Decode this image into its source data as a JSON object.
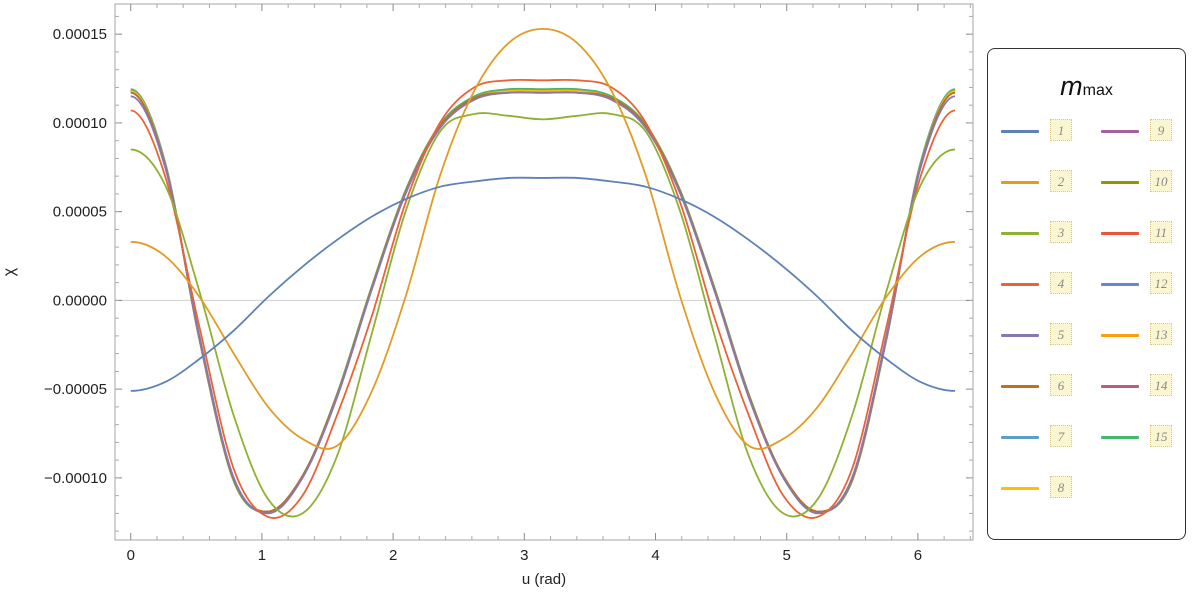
{
  "chart_data": {
    "type": "line",
    "title": "",
    "xlabel": "u (rad)",
    "ylabel": "χ",
    "xlim": [
      -0.12,
      6.42
    ],
    "ylim": [
      -0.000135,
      0.000167
    ],
    "x_ticks": [
      0,
      1,
      2,
      3,
      4,
      5,
      6
    ],
    "x_tick_labels": [
      "0",
      "1",
      "2",
      "3",
      "4",
      "5",
      "6"
    ],
    "y_ticks": [
      0.00015,
      0.0001,
      5e-05,
      0,
      -5e-05,
      -0.0001
    ],
    "y_tick_labels": [
      "0.00015",
      "0.00010",
      "0.00005",
      "0.00000",
      "−0.00005",
      "−0.00010"
    ],
    "grid": false,
    "legend_placement": "right",
    "legend_title": "m",
    "legend_title_sub": "max",
    "x_samples": [
      0,
      0.2618,
      0.5236,
      0.7854,
      1.0472,
      1.309,
      1.5708,
      1.8326,
      2.0944,
      2.3562,
      2.618,
      2.8798,
      3.1416
    ],
    "symmetry": "values mirrored about u = 3.1416",
    "series": [
      {
        "name": "1",
        "color": "#5e81b5",
        "values": [
          -5.1e-05,
          -4.6e-05,
          -3.3e-05,
          -1.7e-05,
          2e-06,
          1.9e-05,
          3.4e-05,
          4.7e-05,
          5.7e-05,
          6.4e-05,
          6.7e-05,
          6.9e-05,
          6.9e-05
        ]
      },
      {
        "name": "2",
        "color": "#e19c24",
        "values": [
          3.3e-05,
          2.5e-05,
          2e-06,
          -3e-05,
          -6e-05,
          -7.8e-05,
          -8.2e-05,
          -5.2e-05,
          2e-06,
          7e-05,
          0.000118,
          0.000145,
          0.000153
        ]
      },
      {
        "name": "3",
        "color": "#8fb032",
        "values": [
          8.5e-05,
          6.5e-05,
          5e-06,
          -6.5e-05,
          -0.000112,
          -0.00012,
          -8.8e-05,
          -2e-05,
          5e-05,
          9.5e-05,
          0.000105,
          0.000104,
          0.000102
        ]
      },
      {
        "name": "4",
        "color": "#eb6235",
        "values": [
          0.000107,
          7e-05,
          -1.5e-05,
          -9.5e-05,
          -0.000122,
          -0.00011,
          -6.5e-05,
          -1e-05,
          5.5e-05,
          0.0001,
          0.00012,
          0.000124,
          0.000124
        ]
      },
      {
        "name": "5",
        "color": "#8778b3",
        "values": [
          0.000115,
          7.5e-05,
          -2e-05,
          -0.0001,
          -0.00012,
          -0.0001,
          -5.5e-05,
          5e-06,
          6e-05,
          9.7e-05,
          0.000113,
          0.000117,
          0.000117
        ]
      },
      {
        "name": "6",
        "color": "#c56e1a",
        "values": [
          0.000117,
          7.6e-05,
          -2.1e-05,
          -0.000101,
          -0.000119,
          -9.9e-05,
          -5.4e-05,
          6e-06,
          6.1e-05,
          9.8e-05,
          0.000114,
          0.000117,
          0.000117
        ]
      },
      {
        "name": "7",
        "color": "#5d9ec7",
        "values": [
          0.000117,
          7.7e-05,
          -2.2e-05,
          -0.000101,
          -0.000119,
          -9.9e-05,
          -5.4e-05,
          6e-06,
          6.1e-05,
          9.8e-05,
          0.000114,
          0.000117,
          0.000117
        ]
      },
      {
        "name": "8",
        "color": "#ffbf00",
        "values": [
          0.000118,
          7.7e-05,
          -2.2e-05,
          -0.000101,
          -0.000119,
          -9.9e-05,
          -5.4e-05,
          6e-06,
          6.1e-05,
          9.8e-05,
          0.000114,
          0.000118,
          0.000118
        ]
      },
      {
        "name": "9",
        "color": "#a5609d",
        "values": [
          0.000118,
          7.7e-05,
          -2.2e-05,
          -0.000101,
          -0.000119,
          -9.9e-05,
          -5.4e-05,
          6e-06,
          6.1e-05,
          9.8e-05,
          0.000114,
          0.000118,
          0.000118
        ]
      },
      {
        "name": "10",
        "color": "#929600",
        "values": [
          0.000118,
          7.7e-05,
          -2.2e-05,
          -0.000101,
          -0.000119,
          -9.9e-05,
          -5.4e-05,
          6e-06,
          6.1e-05,
          9.8e-05,
          0.000114,
          0.000118,
          0.000118
        ]
      },
      {
        "name": "11",
        "color": "#e95536",
        "values": [
          0.000118,
          7.7e-05,
          -2.2e-05,
          -0.000101,
          -0.000119,
          -9.9e-05,
          -5.4e-05,
          6e-06,
          6.1e-05,
          9.8e-05,
          0.000114,
          0.000118,
          0.000118
        ]
      },
      {
        "name": "12",
        "color": "#6685d9",
        "values": [
          0.000118,
          7.7e-05,
          -2.2e-05,
          -0.000101,
          -0.000119,
          -9.9e-05,
          -5.4e-05,
          6e-06,
          6.1e-05,
          9.8e-05,
          0.000114,
          0.000118,
          0.000118
        ]
      },
      {
        "name": "13",
        "color": "#f89f13",
        "values": [
          0.000118,
          7.7e-05,
          -2.2e-05,
          -0.000101,
          -0.000119,
          -9.9e-05,
          -5.4e-05,
          6e-06,
          6.1e-05,
          9.8e-05,
          0.000114,
          0.000118,
          0.000118
        ]
      },
      {
        "name": "14",
        "color": "#bc5b80",
        "values": [
          0.000118,
          7.7e-05,
          -2.2e-05,
          -0.000101,
          -0.000119,
          -9.9e-05,
          -5.4e-05,
          6e-06,
          6.1e-05,
          9.8e-05,
          0.000114,
          0.000118,
          0.000118
        ]
      },
      {
        "name": "15",
        "color": "#47b66d",
        "values": [
          0.000119,
          7.8e-05,
          -2.2e-05,
          -0.000102,
          -0.000119,
          -9.9e-05,
          -5.3e-05,
          7e-06,
          6.2e-05,
          9.9e-05,
          0.000115,
          0.000119,
          0.000119
        ]
      }
    ]
  }
}
